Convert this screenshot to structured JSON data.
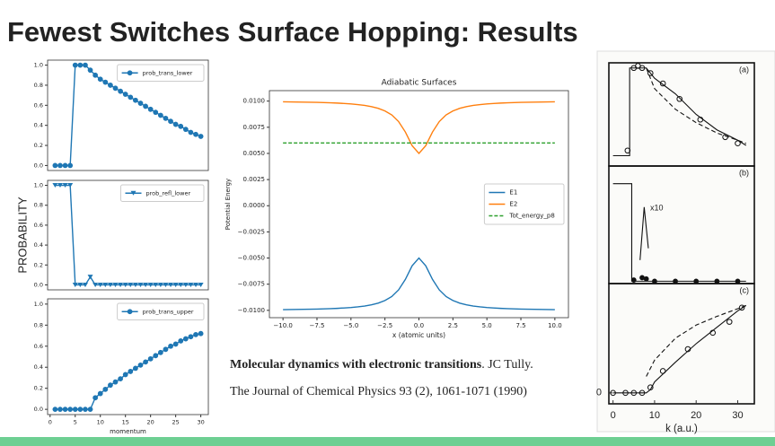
{
  "title": "Fewest Switches Surface Hopping: Results",
  "shared_ylabel": "PROBABILITY",
  "citation": {
    "title": "Molecular dynamics with electronic transitions",
    "authors": ". JC Tully.",
    "journal": "The Journal of Chemical Physics 93 (2), 1061-1071 (1990)"
  },
  "chart_data": [
    {
      "type": "line",
      "x": [
        1,
        2,
        3,
        4,
        5,
        6,
        7,
        8,
        9,
        10,
        11,
        12,
        13,
        14,
        15,
        16,
        17,
        18,
        19,
        20,
        21,
        22,
        23,
        24,
        25,
        26,
        27,
        28,
        29,
        30
      ],
      "series": [
        {
          "name": "prob_trans_lower",
          "color": "#1f77b4",
          "marker": "o",
          "values": [
            0,
            0,
            0,
            0,
            1,
            1,
            1,
            0.95,
            0.9,
            0.86,
            0.83,
            0.8,
            0.77,
            0.74,
            0.71,
            0.68,
            0.65,
            0.62,
            0.59,
            0.56,
            0.53,
            0.5,
            0.47,
            0.44,
            0.41,
            0.39,
            0.36,
            0.33,
            0.31,
            0.29
          ]
        }
      ],
      "xlim": [
        -0.5,
        31.5
      ],
      "ylim": [
        -0.05,
        1.05
      ],
      "yticks": [
        {
          "value": 0,
          "label": "0.0"
        },
        0.2,
        0.4,
        0.6,
        0.8,
        {
          "value": 1,
          "label": "1.0"
        }
      ],
      "legend": "upper right"
    },
    {
      "type": "line",
      "x": [
        1,
        2,
        3,
        4,
        5,
        6,
        7,
        8,
        9,
        10,
        11,
        12,
        13,
        14,
        15,
        16,
        17,
        18,
        19,
        20,
        21,
        22,
        23,
        24,
        25,
        26,
        27,
        28,
        29,
        30
      ],
      "series": [
        {
          "name": "prob_refl_lower",
          "color": "#1f77b4",
          "marker": "v",
          "values": [
            1,
            1,
            1,
            1,
            0,
            0,
            0,
            0.08,
            0,
            0,
            0,
            0,
            0,
            0,
            0,
            0,
            0,
            0,
            0,
            0,
            0,
            0,
            0,
            0,
            0,
            0,
            0,
            0,
            0,
            0
          ]
        }
      ],
      "xlim": [
        -0.5,
        31.5
      ],
      "ylim": [
        -0.05,
        1.05
      ],
      "yticks": [
        {
          "value": 0,
          "label": "0.0"
        },
        0.2,
        0.4,
        0.6,
        0.8,
        {
          "value": 1,
          "label": "1.0"
        }
      ],
      "legend": "upper right"
    },
    {
      "type": "line",
      "x": [
        1,
        2,
        3,
        4,
        5,
        6,
        7,
        8,
        9,
        10,
        11,
        12,
        13,
        14,
        15,
        16,
        17,
        18,
        19,
        20,
        21,
        22,
        23,
        24,
        25,
        26,
        27,
        28,
        29,
        30
      ],
      "series": [
        {
          "name": "prob_trans_upper",
          "color": "#1f77b4",
          "marker": "o",
          "values": [
            0,
            0,
            0,
            0,
            0,
            0,
            0,
            0,
            0.11,
            0.15,
            0.19,
            0.23,
            0.26,
            0.29,
            0.33,
            0.36,
            0.39,
            0.42,
            0.45,
            0.48,
            0.51,
            0.54,
            0.57,
            0.6,
            0.62,
            0.65,
            0.67,
            0.69,
            0.71,
            0.72
          ]
        }
      ],
      "xlim": [
        -0.5,
        31.5
      ],
      "ylim": [
        -0.05,
        1.05
      ],
      "yticks": [
        {
          "value": 0,
          "label": "0.0"
        },
        0.2,
        0.4,
        0.6,
        0.8,
        {
          "value": 1,
          "label": "1.0"
        }
      ],
      "xticks": [
        0,
        5,
        10,
        15,
        20,
        25,
        30
      ],
      "xlabel": "momentum",
      "legend": "upper right"
    },
    {
      "type": "line",
      "title": "Adiabatic Surfaces",
      "xlabel": "x (atomic units)",
      "ylabel": "Potential Energy",
      "x": [
        -10,
        -9.5,
        -9,
        -8.5,
        -8,
        -7.5,
        -7,
        -6.5,
        -6,
        -5.5,
        -5,
        -4.5,
        -4,
        -3.5,
        -3,
        -2.5,
        -2,
        -1.5,
        -1,
        -0.5,
        0,
        0.5,
        1,
        1.5,
        2,
        2.5,
        3,
        3.5,
        4,
        4.5,
        5,
        5.5,
        6,
        6.5,
        7,
        7.5,
        8,
        8.5,
        9,
        9.5,
        10
      ],
      "series": [
        {
          "name": "E1",
          "color": "#1f77b4",
          "values": [
            -0.00993,
            -0.00992,
            -0.00991,
            -0.0099,
            -0.00989,
            -0.00988,
            -0.00986,
            -0.00984,
            -0.00981,
            -0.00977,
            -0.00973,
            -0.00967,
            -0.00959,
            -0.00947,
            -0.00931,
            -0.00906,
            -0.00868,
            -0.00805,
            -0.00705,
            -0.00574,
            -0.005,
            -0.00574,
            -0.00705,
            -0.00805,
            -0.00868,
            -0.00906,
            -0.00931,
            -0.00947,
            -0.00959,
            -0.00967,
            -0.00973,
            -0.00977,
            -0.00981,
            -0.00984,
            -0.00986,
            -0.00988,
            -0.00989,
            -0.0099,
            -0.00991,
            -0.00992,
            -0.00993
          ]
        },
        {
          "name": "E2",
          "color": "#ff7f0e",
          "values": [
            0.00993,
            0.00992,
            0.00991,
            0.0099,
            0.00989,
            0.00988,
            0.00986,
            0.00984,
            0.00981,
            0.00977,
            0.00973,
            0.00967,
            0.00959,
            0.00947,
            0.00931,
            0.00906,
            0.00868,
            0.00805,
            0.00705,
            0.00574,
            0.005,
            0.00574,
            0.00705,
            0.00805,
            0.00868,
            0.00906,
            0.00931,
            0.00947,
            0.00959,
            0.00967,
            0.00973,
            0.00977,
            0.00981,
            0.00984,
            0.00986,
            0.00988,
            0.00989,
            0.0099,
            0.00991,
            0.00992,
            0.00993
          ]
        },
        {
          "name": "Tot_energy_p8",
          "color": "#2ca02c",
          "dash": true,
          "values": [
            0.006,
            0.006,
            0.006,
            0.006,
            0.006,
            0.006,
            0.006,
            0.006,
            0.006,
            0.006,
            0.006,
            0.006,
            0.006,
            0.006,
            0.006,
            0.006,
            0.006,
            0.006,
            0.006,
            0.006,
            0.006,
            0.006,
            0.006,
            0.006,
            0.006,
            0.006,
            0.006,
            0.006,
            0.006,
            0.006,
            0.006,
            0.006,
            0.006,
            0.006,
            0.006,
            0.006,
            0.006,
            0.006,
            0.006,
            0.006,
            0.006
          ]
        }
      ],
      "xlim": [
        -11,
        11
      ],
      "ylim": [
        -0.0107,
        0.011
      ],
      "xticks": [
        {
          "value": -10,
          "label": "−10.0"
        },
        {
          "value": -7.5,
          "label": "−7.5"
        },
        {
          "value": -5,
          "label": "−5.0"
        },
        {
          "value": -2.5,
          "label": "−2.5"
        },
        {
          "value": 0,
          "label": "0.0"
        },
        2.5,
        {
          "value": 5,
          "label": "5.0"
        },
        7.5,
        {
          "value": 10,
          "label": "10.0"
        }
      ],
      "yticks": [
        {
          "value": 0.01,
          "label": "0.0100"
        },
        {
          "value": 0.0075,
          "label": "0.0075"
        },
        {
          "value": 0.005,
          "label": "0.0050"
        },
        {
          "value": 0.0025,
          "label": "0.0025"
        },
        {
          "value": 0,
          "label": "0.0000"
        },
        {
          "value": -0.0025,
          "label": "−0.0025"
        },
        {
          "value": -0.005,
          "label": "−0.0050"
        },
        {
          "value": -0.0075,
          "label": "−0.0075"
        },
        {
          "value": -0.01,
          "label": "−0.0100"
        }
      ],
      "legend": "center right"
    },
    {
      "type": "line",
      "label": "(a)",
      "xlim": [
        -1,
        34
      ],
      "ylim": [
        0,
        1
      ],
      "series": [
        {
          "color": "#111",
          "x": [
            0,
            4,
            4,
            5,
            8,
            10,
            15,
            20,
            25,
            30,
            32
          ],
          "values": [
            0.1,
            0.1,
            0.95,
            0.95,
            0.95,
            0.85,
            0.7,
            0.5,
            0.35,
            0.25,
            0.2
          ]
        },
        {
          "color": "#111",
          "dash": true,
          "x": [
            8,
            10,
            15,
            20,
            25,
            30,
            32
          ],
          "values": [
            0.95,
            0.75,
            0.55,
            0.42,
            0.32,
            0.25,
            0.22
          ]
        },
        {
          "color": "#111",
          "marker": "open-o",
          "nolines": true,
          "x": [
            3.5,
            5,
            6,
            7,
            9,
            12,
            16,
            21,
            27,
            30
          ],
          "values": [
            0.15,
            0.95,
            0.97,
            0.95,
            0.9,
            0.8,
            0.65,
            0.45,
            0.28,
            0.22
          ]
        }
      ]
    },
    {
      "type": "line",
      "label": "(b)",
      "annotation": "x10",
      "xlim": [
        -1,
        34
      ],
      "ylim": [
        0,
        1
      ],
      "series": [
        {
          "color": "#111",
          "x": [
            0,
            4.5,
            4.5,
            32
          ],
          "values": [
            0.85,
            0.85,
            0.02,
            0.02
          ]
        },
        {
          "color": "#111",
          "x": [
            6.5,
            7.5,
            8.5
          ],
          "values": [
            0.2,
            0.65,
            0.3
          ]
        },
        {
          "color": "#111",
          "marker": "o",
          "nolines": true,
          "x": [
            5,
            7,
            8,
            10,
            15,
            20,
            25,
            30
          ],
          "values": [
            0.03,
            0.05,
            0.04,
            0.02,
            0.02,
            0.02,
            0.02,
            0.02
          ]
        }
      ]
    },
    {
      "type": "line",
      "label": "(c)",
      "xlabel": "k (a.u.)",
      "xlim": [
        -1,
        34
      ],
      "ylim": [
        -0.1,
        1
      ],
      "xticks": [
        0,
        10,
        20,
        30
      ],
      "yticks": [
        0
      ],
      "series": [
        {
          "color": "#111",
          "x": [
            0,
            8,
            9,
            10,
            15,
            20,
            25,
            30,
            32
          ],
          "values": [
            0,
            0,
            0.03,
            0.1,
            0.28,
            0.45,
            0.6,
            0.75,
            0.8
          ]
        },
        {
          "color": "#111",
          "dash": true,
          "x": [
            8,
            10,
            15,
            20,
            25,
            30,
            32
          ],
          "values": [
            0.15,
            0.3,
            0.5,
            0.62,
            0.7,
            0.77,
            0.8
          ]
        },
        {
          "color": "#111",
          "marker": "open-o",
          "nolines": true,
          "x": [
            0,
            3,
            5,
            7,
            9,
            12,
            18,
            24,
            28,
            31
          ],
          "values": [
            0,
            0,
            0,
            0,
            0.05,
            0.2,
            0.4,
            0.55,
            0.65,
            0.78
          ]
        }
      ]
    }
  ]
}
